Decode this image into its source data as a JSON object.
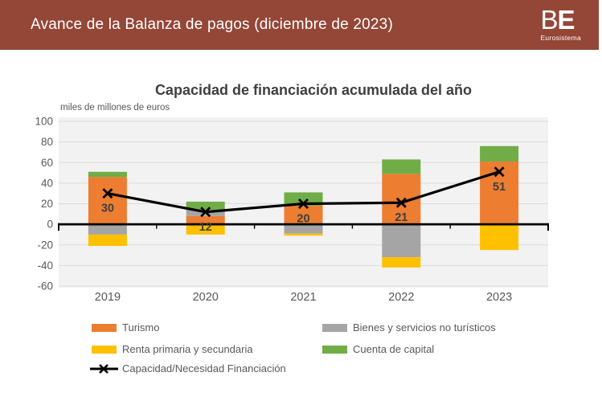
{
  "header": {
    "title": "Avance de la Balanza de pagos (diciembre de 2023)",
    "background_color": "#944637",
    "logo": {
      "b": "B",
      "e": "E",
      "subtext": "Eurosistema"
    }
  },
  "chart_data": {
    "type": "bar",
    "subtype": "stacked-bar-with-line",
    "title": "Capacidad de financiación acumulada del año",
    "units_label": "miles de millones de euros",
    "categories": [
      "2019",
      "2020",
      "2021",
      "2022",
      "2023"
    ],
    "series": [
      {
        "name": "Turismo",
        "type": "bar",
        "color": "#ED7D31",
        "values": [
          46,
          8,
          18,
          49,
          61
        ]
      },
      {
        "name": "Bienes y servicios no turísticos",
        "type": "bar",
        "color": "#A5A5A5",
        "values": [
          -10,
          6,
          -9,
          -32,
          0
        ]
      },
      {
        "name": "Renta primaria y secundaria",
        "type": "bar",
        "color": "#FFC000",
        "values": [
          -11,
          -10,
          -2,
          -10,
          -25
        ]
      },
      {
        "name": "Cuenta de capital",
        "type": "bar",
        "color": "#70AD47",
        "values": [
          5,
          8,
          13,
          14,
          15
        ]
      },
      {
        "name": "Capacidad/Necesidad Financiación",
        "type": "line",
        "color": "#000000",
        "marker": "x",
        "values": [
          30,
          12,
          20,
          21,
          51
        ],
        "data_labels": [
          "30",
          "12",
          "20",
          "21",
          "51"
        ]
      }
    ],
    "ylim": [
      -60,
      100
    ],
    "ytick_interval": 20,
    "y_axis_ticks": [
      "100",
      "80",
      "60",
      "40",
      "20",
      "0",
      "-20",
      "-40",
      "-60"
    ],
    "grid": true,
    "legend_position": "bottom",
    "plot_background": "#F2F2F2",
    "gridline_color": "#DCDCDC",
    "axis_text_color": "#595959",
    "data_label_color": "#404040"
  }
}
